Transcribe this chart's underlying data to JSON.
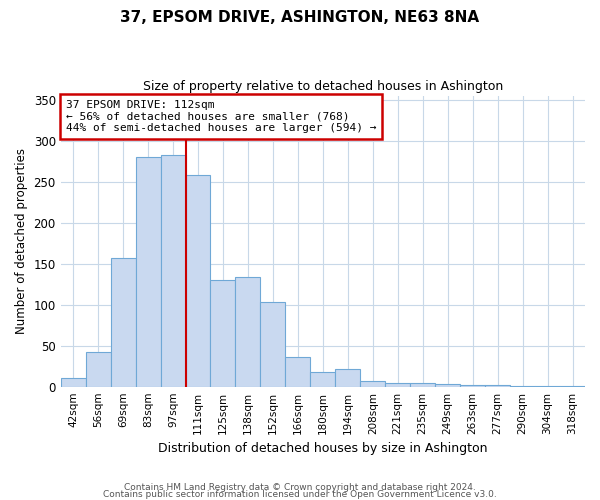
{
  "title": "37, EPSOM DRIVE, ASHINGTON, NE63 8NA",
  "subtitle": "Size of property relative to detached houses in Ashington",
  "xlabel": "Distribution of detached houses by size in Ashington",
  "ylabel": "Number of detached properties",
  "bar_labels": [
    "42sqm",
    "56sqm",
    "69sqm",
    "83sqm",
    "97sqm",
    "111sqm",
    "125sqm",
    "138sqm",
    "152sqm",
    "166sqm",
    "180sqm",
    "194sqm",
    "208sqm",
    "221sqm",
    "235sqm",
    "249sqm",
    "263sqm",
    "277sqm",
    "290sqm",
    "304sqm",
    "318sqm"
  ],
  "bar_values": [
    10,
    42,
    157,
    280,
    283,
    258,
    130,
    134,
    103,
    36,
    18,
    22,
    7,
    5,
    4,
    3,
    2,
    2,
    1,
    1,
    1
  ],
  "bar_color": "#c9d9f0",
  "bar_edge_color": "#6fa8d6",
  "property_line_x": 4.5,
  "property_line_label": "37 EPSOM DRIVE: 112sqm",
  "property_line_color": "#cc0000",
  "annotation_line1": "← 56% of detached houses are smaller (768)",
  "annotation_line2": "44% of semi-detached houses are larger (594) →",
  "annotation_box_color": "#cc0000",
  "ylim": [
    0,
    355
  ],
  "yticks": [
    0,
    50,
    100,
    150,
    200,
    250,
    300,
    350
  ],
  "footer1": "Contains HM Land Registry data © Crown copyright and database right 2024.",
  "footer2": "Contains public sector information licensed under the Open Government Licence v3.0.",
  "background_color": "#ffffff",
  "grid_color": "#c8d8e8"
}
